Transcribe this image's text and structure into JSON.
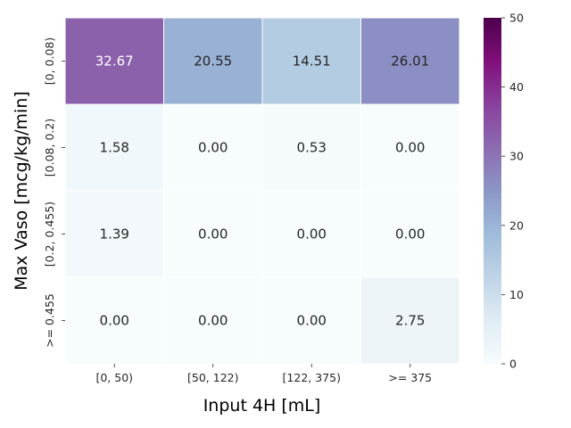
{
  "chart_data": {
    "type": "heatmap",
    "title": "",
    "xlabel": "Input 4H [mL]",
    "ylabel": "Max Vaso [mcg/kg/min]",
    "x_categories": [
      "[0, 50)",
      "[50, 122)",
      "[122, 375)",
      ">= 375"
    ],
    "y_categories": [
      "[0, 0.08)",
      "[0.08, 0.2)",
      "[0.2, 0.455)",
      ">= 0.455"
    ],
    "values": [
      [
        32.67,
        20.55,
        14.51,
        26.01
      ],
      [
        1.58,
        0.0,
        0.53,
        0.0
      ],
      [
        1.39,
        0.0,
        0.0,
        0.0
      ],
      [
        0.0,
        0.0,
        0.0,
        2.75
      ]
    ],
    "value_labels": [
      [
        "32.67",
        "20.55",
        "14.51",
        "26.01"
      ],
      [
        "1.58",
        "0.00",
        "0.53",
        "0.00"
      ],
      [
        "1.39",
        "0.00",
        "0.00",
        "0.00"
      ],
      [
        "0.00",
        "0.00",
        "0.00",
        "2.75"
      ]
    ],
    "colorbar": {
      "range": [
        0,
        50
      ],
      "ticks": [
        0,
        10,
        20,
        30,
        40,
        50
      ],
      "tick_labels": [
        "0",
        "10",
        "20",
        "30",
        "40",
        "50"
      ],
      "colormap": "BuPu",
      "colors": [
        "#f7fcfd",
        "#e0ecf4",
        "#bfd3e6",
        "#9ebcda",
        "#8c96c6",
        "#8c6bb1",
        "#88419d",
        "#810f7c",
        "#4d004b"
      ]
    },
    "grid": false,
    "legend": "colorbar-right"
  }
}
